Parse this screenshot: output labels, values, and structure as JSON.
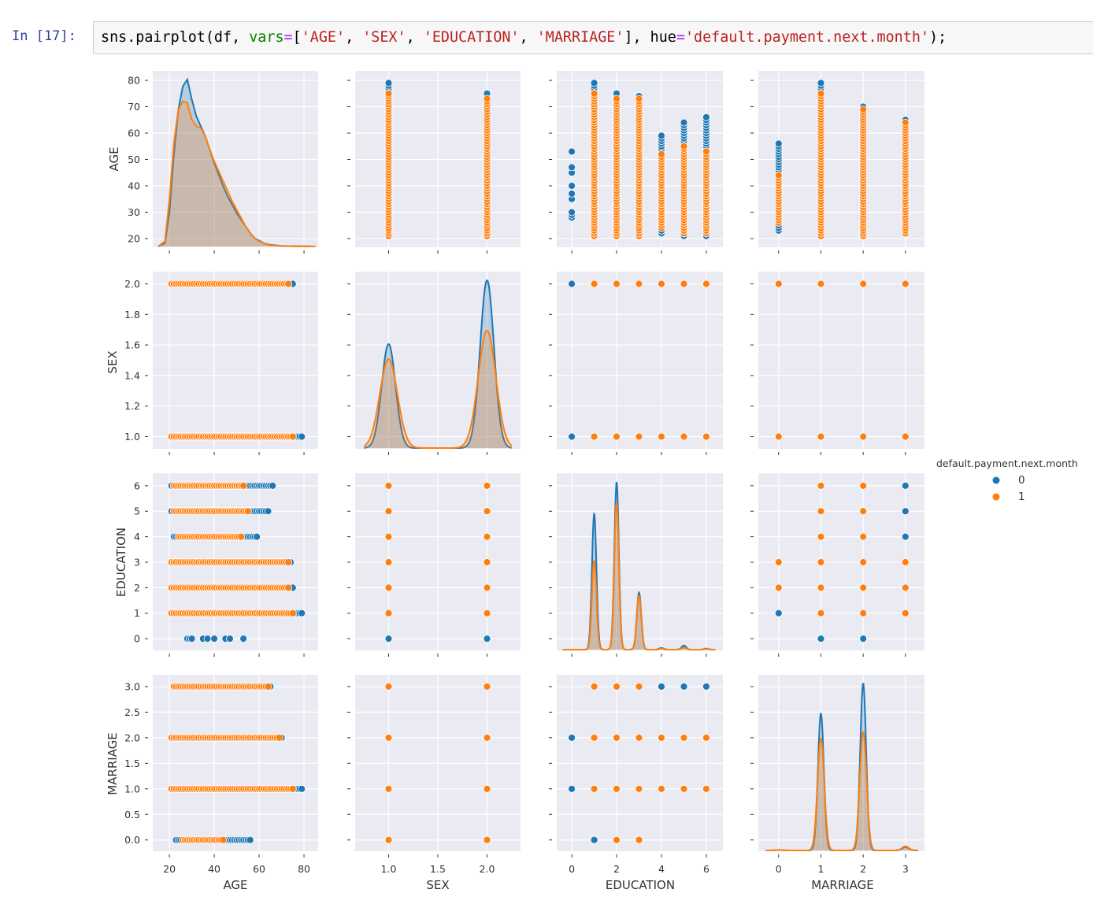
{
  "cell": {
    "prompt": "In [17]:",
    "code_tokens": [
      {
        "text": "sns.pairplot(df, ",
        "type": "plain"
      },
      {
        "text": "vars",
        "type": "kw"
      },
      {
        "text": "=",
        "type": "op"
      },
      {
        "text": "[",
        "type": "plain"
      },
      {
        "text": "'AGE'",
        "type": "str"
      },
      {
        "text": ", ",
        "type": "plain"
      },
      {
        "text": "'SEX'",
        "type": "str"
      },
      {
        "text": ", ",
        "type": "plain"
      },
      {
        "text": "'EDUCATION'",
        "type": "str"
      },
      {
        "text": ", ",
        "type": "plain"
      },
      {
        "text": "'MARRIAGE'",
        "type": "str"
      },
      {
        "text": "], hue",
        "type": "plain"
      },
      {
        "text": "=",
        "type": "op"
      },
      {
        "text": "'default.payment.next.month'",
        "type": "str"
      },
      {
        "text": ");",
        "type": "plain"
      }
    ]
  },
  "chart_data": {
    "type": "pairplot",
    "hue": "default.payment.next.month",
    "legend": {
      "title": "default.payment.next.month",
      "placement": "right",
      "entries": [
        {
          "label": "0",
          "color": "#1f77b4"
        },
        {
          "label": "1",
          "color": "#ff7f0e"
        }
      ]
    },
    "colors": {
      "0": "#1f77b4",
      "1": "#ff7f0e",
      "panel_bg": "#eaeaf2",
      "grid": "#ffffff"
    },
    "grid": true,
    "variables": [
      {
        "name": "AGE",
        "xlim": [
          12.6,
          86.3
        ],
        "ylim": [
          16.7,
          83.6
        ],
        "xticks": [
          "20",
          "40",
          "60",
          "80"
        ],
        "yticks": [
          "20",
          "30",
          "40",
          "50",
          "60",
          "70",
          "80"
        ]
      },
      {
        "name": "SEX",
        "xlim": [
          0.66,
          2.34
        ],
        "ylim": [
          0.92,
          2.08
        ],
        "xticks": [
          "1.0",
          "1.5",
          "2.0"
        ],
        "yticks": [
          "1.0",
          "1.2",
          "1.4",
          "1.6",
          "1.8",
          "2.0"
        ]
      },
      {
        "name": "EDUCATION",
        "xlim": [
          -0.67,
          6.74
        ],
        "ylim": [
          -0.46,
          6.49
        ],
        "xticks": [
          "0",
          "2",
          "4",
          "6"
        ],
        "yticks": [
          "0",
          "1",
          "2",
          "3",
          "4",
          "5",
          "6"
        ]
      },
      {
        "name": "MARRIAGE",
        "xlim": [
          -0.48,
          3.45
        ],
        "ylim": [
          -0.22,
          3.23
        ],
        "xticks": [
          "0",
          "1",
          "2",
          "3"
        ],
        "yticks": [
          "0.0",
          "0.5",
          "1.0",
          "1.5",
          "2.0",
          "2.5",
          "3.0"
        ]
      }
    ],
    "kde": {
      "AGE": {
        "kind": "sampled",
        "x": [
          15,
          18,
          20,
          22,
          24,
          26,
          28,
          30,
          32,
          34,
          36,
          38,
          40,
          42,
          44,
          46,
          48,
          50,
          52,
          54,
          56,
          58,
          60,
          62,
          64,
          66,
          70,
          75,
          80,
          85
        ],
        "class0": [
          0,
          0.02,
          0.2,
          0.55,
          0.82,
          0.96,
          1.0,
          0.88,
          0.78,
          0.72,
          0.66,
          0.58,
          0.5,
          0.43,
          0.36,
          0.3,
          0.25,
          0.2,
          0.16,
          0.12,
          0.08,
          0.05,
          0.035,
          0.02,
          0.012,
          0.008,
          0.004,
          0.002,
          0.001,
          0
        ],
        "class1": [
          0,
          0.03,
          0.28,
          0.62,
          0.82,
          0.87,
          0.86,
          0.76,
          0.72,
          0.71,
          0.66,
          0.58,
          0.51,
          0.45,
          0.39,
          0.33,
          0.27,
          0.22,
          0.17,
          0.12,
          0.08,
          0.05,
          0.03,
          0.02,
          0.01,
          0.006,
          0.003,
          0.001,
          0,
          0
        ]
      },
      "SEX": {
        "kind": "peaks",
        "support": [
          0.75,
          2.25
        ],
        "class0": [
          {
            "at": 1,
            "height": 0.62,
            "spread": 0.07
          },
          {
            "at": 2,
            "height": 1.0,
            "spread": 0.07
          }
        ],
        "class1": [
          {
            "at": 1,
            "height": 0.53,
            "spread": 0.09
          },
          {
            "at": 2,
            "height": 0.7,
            "spread": 0.09
          }
        ]
      },
      "EDUCATION": {
        "kind": "peaks",
        "support": [
          -0.4,
          6.4
        ],
        "class0": [
          {
            "at": 1,
            "height": 0.81,
            "spread": 0.1
          },
          {
            "at": 2,
            "height": 1.0,
            "spread": 0.1
          },
          {
            "at": 3,
            "height": 0.34,
            "spread": 0.1
          },
          {
            "at": 4,
            "height": 0.01,
            "spread": 0.1
          },
          {
            "at": 5,
            "height": 0.025,
            "spread": 0.1
          },
          {
            "at": 6,
            "height": 0.006,
            "spread": 0.1
          }
        ],
        "class1": [
          {
            "at": 1,
            "height": 0.53,
            "spread": 0.1
          },
          {
            "at": 2,
            "height": 0.88,
            "spread": 0.1
          },
          {
            "at": 3,
            "height": 0.32,
            "spread": 0.1
          },
          {
            "at": 4,
            "height": 0.006,
            "spread": 0.1
          },
          {
            "at": 5,
            "height": 0.012,
            "spread": 0.1
          },
          {
            "at": 6,
            "height": 0.004,
            "spread": 0.1
          }
        ]
      },
      "MARRIAGE": {
        "kind": "peaks",
        "support": [
          -0.3,
          3.3
        ],
        "class0": [
          {
            "at": 0,
            "height": 0.003,
            "spread": 0.08
          },
          {
            "at": 1,
            "height": 0.82,
            "spread": 0.07
          },
          {
            "at": 2,
            "height": 1.0,
            "spread": 0.07
          },
          {
            "at": 3,
            "height": 0.02,
            "spread": 0.08
          }
        ],
        "class1": [
          {
            "at": 0,
            "height": 0.003,
            "spread": 0.08
          },
          {
            "at": 1,
            "height": 0.67,
            "spread": 0.08
          },
          {
            "at": 2,
            "height": 0.71,
            "spread": 0.08
          },
          {
            "at": 3,
            "height": 0.025,
            "spread": 0.08
          }
        ]
      }
    },
    "scatter": {
      "AGE|SEX": {
        "kind": "age_ranges",
        "levels": [
          {
            "value": 1,
            "class0": [
              21,
              79
            ],
            "class1": [
              21,
              75
            ]
          },
          {
            "value": 2,
            "class0": [
              21,
              75
            ],
            "class1": [
              21,
              73
            ]
          }
        ]
      },
      "AGE|EDUCATION": {
        "kind": "age_ranges",
        "levels": [
          {
            "value": 0,
            "class0_values": [
              28,
              29,
              30,
              35,
              37,
              40,
              45,
              47,
              53
            ]
          },
          {
            "value": 1,
            "class0": [
              21,
              79
            ],
            "class1": [
              21,
              75
            ]
          },
          {
            "value": 2,
            "class0": [
              21,
              75
            ],
            "class1": [
              21,
              73
            ]
          },
          {
            "value": 3,
            "class0": [
              21,
              74
            ],
            "class1": [
              21,
              73
            ]
          },
          {
            "value": 4,
            "class0": [
              22,
              59
            ],
            "class1": [
              24,
              52
            ]
          },
          {
            "value": 5,
            "class0": [
              21,
              64
            ],
            "class1": [
              22,
              55
            ]
          },
          {
            "value": 6,
            "class0": [
              21,
              66
            ],
            "class1": [
              22,
              53
            ]
          }
        ]
      },
      "AGE|MARRIAGE": {
        "kind": "age_ranges",
        "levels": [
          {
            "value": 0,
            "class0": [
              23,
              56
            ],
            "class1": [
              26,
              44
            ]
          },
          {
            "value": 1,
            "class0": [
              21,
              79
            ],
            "class1": [
              21,
              75
            ]
          },
          {
            "value": 2,
            "class0": [
              21,
              70
            ],
            "class1": [
              21,
              69
            ]
          },
          {
            "value": 3,
            "class0": [
              22,
              65
            ],
            "class1": [
              22,
              64
            ]
          }
        ]
      },
      "SEX|EDUCATION": {
        "kind": "points",
        "points": [
          [
            1,
            0,
            0
          ],
          [
            1,
            1,
            1
          ],
          [
            1,
            2,
            1
          ],
          [
            1,
            3,
            1
          ],
          [
            1,
            4,
            1
          ],
          [
            1,
            5,
            1
          ],
          [
            1,
            6,
            1
          ],
          [
            2,
            0,
            0
          ],
          [
            2,
            1,
            1
          ],
          [
            2,
            2,
            1
          ],
          [
            2,
            3,
            1
          ],
          [
            2,
            4,
            1
          ],
          [
            2,
            5,
            1
          ],
          [
            2,
            6,
            1
          ]
        ]
      },
      "SEX|MARRIAGE": {
        "kind": "points",
        "points": [
          [
            1,
            0,
            1
          ],
          [
            1,
            1,
            1
          ],
          [
            1,
            2,
            1
          ],
          [
            1,
            3,
            1
          ],
          [
            2,
            0,
            1
          ],
          [
            2,
            1,
            1
          ],
          [
            2,
            2,
            1
          ],
          [
            2,
            3,
            1
          ]
        ]
      },
      "EDUCATION|MARRIAGE": {
        "kind": "points",
        "points": [
          [
            1,
            3,
            1
          ],
          [
            2,
            3,
            1
          ],
          [
            3,
            3,
            1
          ],
          [
            4,
            3,
            0
          ],
          [
            5,
            3,
            0
          ],
          [
            6,
            3,
            0
          ],
          [
            0,
            2,
            0
          ],
          [
            1,
            2,
            1
          ],
          [
            2,
            2,
            1
          ],
          [
            3,
            2,
            1
          ],
          [
            4,
            2,
            1
          ],
          [
            5,
            2,
            1
          ],
          [
            6,
            2,
            1
          ],
          [
            0,
            1,
            0
          ],
          [
            1,
            1,
            1
          ],
          [
            2,
            1,
            1
          ],
          [
            3,
            1,
            1
          ],
          [
            4,
            1,
            1
          ],
          [
            5,
            1,
            1
          ],
          [
            6,
            1,
            1
          ],
          [
            1,
            0,
            0
          ],
          [
            2,
            0,
            1
          ],
          [
            3,
            0,
            1
          ]
        ]
      }
    }
  }
}
